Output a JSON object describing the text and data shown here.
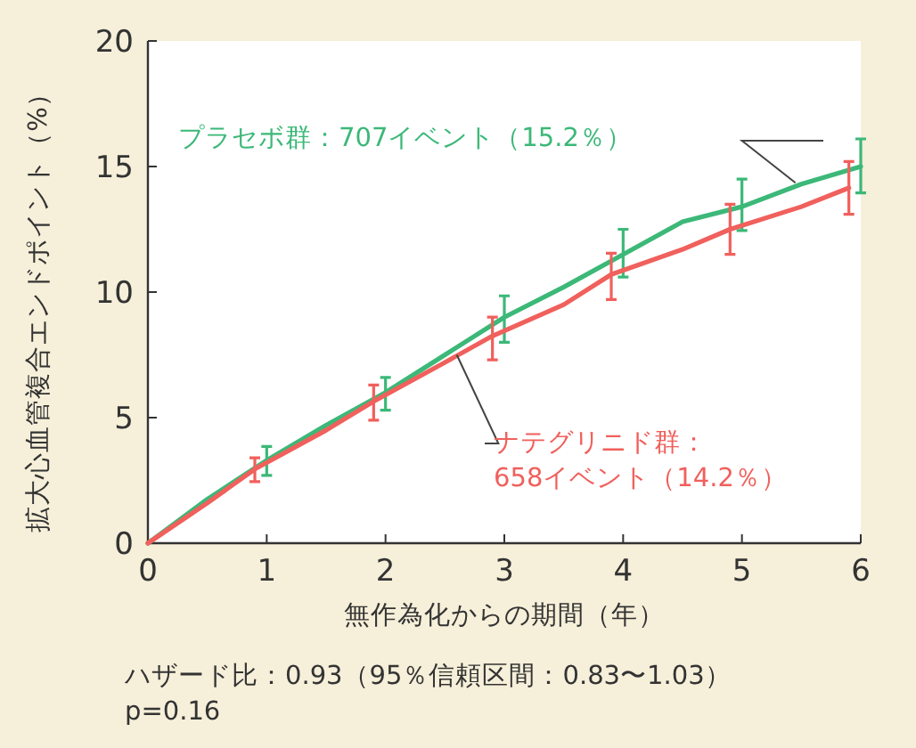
{
  "chart_data": {
    "type": "line",
    "xlabel": "無作為化からの期間（年）",
    "ylabel": "拡大心血管複合エンドポイント（%）",
    "xlim": [
      0,
      6
    ],
    "xticks": [
      0,
      1,
      2,
      3,
      4,
      5,
      6
    ],
    "ylim": [
      0,
      20
    ],
    "yticks": [
      0,
      5,
      10,
      15,
      20
    ],
    "grid": false,
    "marker": "none",
    "line_style": "solid",
    "series": [
      {
        "name": "プラセボ群：707イベント（15.2％）",
        "color": "#3cb878",
        "x": [
          0,
          0.5,
          1,
          1.5,
          2,
          2.5,
          3,
          3.5,
          4,
          4.5,
          5,
          5.5,
          6
        ],
        "values": [
          0,
          1.75,
          3.3,
          4.7,
          6.0,
          7.5,
          9.0,
          10.2,
          11.5,
          12.8,
          13.4,
          14.3,
          15.0
        ],
        "errors": [
          null,
          null,
          [
            2.7,
            3.85
          ],
          null,
          [
            5.3,
            6.6
          ],
          null,
          [
            8.0,
            9.85
          ],
          null,
          [
            10.6,
            12.5
          ],
          null,
          [
            12.45,
            14.5
          ],
          null,
          [
            13.95,
            16.1
          ]
        ]
      },
      {
        "name": "ナテグリニド群：\n658イベント（14.2％）",
        "color": "#f0605c",
        "x": [
          0,
          0.5,
          0.9,
          1.5,
          1.9,
          2.5,
          2.9,
          3.5,
          3.9,
          4.5,
          4.9,
          5.5,
          5.9
        ],
        "values": [
          0,
          1.6,
          2.95,
          4.5,
          5.65,
          7.2,
          8.25,
          9.5,
          10.7,
          11.7,
          12.5,
          13.4,
          14.15
        ],
        "errors": [
          null,
          null,
          [
            2.45,
            3.4
          ],
          null,
          [
            4.9,
            6.3
          ],
          null,
          [
            7.3,
            9.0
          ],
          null,
          [
            9.7,
            11.55
          ],
          null,
          [
            11.5,
            13.5
          ],
          null,
          [
            13.1,
            15.2
          ]
        ]
      }
    ],
    "annotations": [
      "ハザード比：0.93（95％信頼区間：0.83〜1.03）",
      "p=0.16"
    ]
  }
}
